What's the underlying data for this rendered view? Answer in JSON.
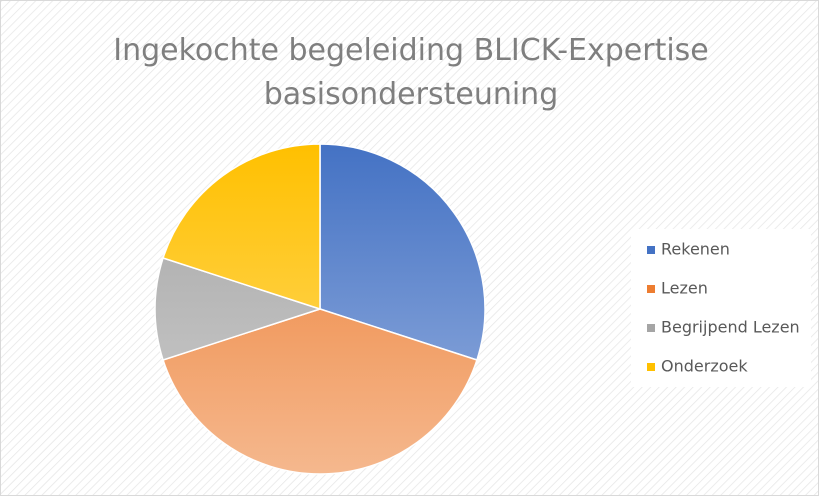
{
  "chart_data": {
    "type": "pie",
    "title": "Ingekochte begeleiding BLICK-Expertise basisondersteuning",
    "categories": [
      "Rekenen",
      "Lezen",
      "Begrijpend Lezen",
      "Onderzoek"
    ],
    "values": [
      30,
      40,
      10,
      20
    ],
    "colors": [
      "#4472c4",
      "#ed7d31",
      "#a5a5a5",
      "#ffc000"
    ],
    "legend": "right"
  }
}
